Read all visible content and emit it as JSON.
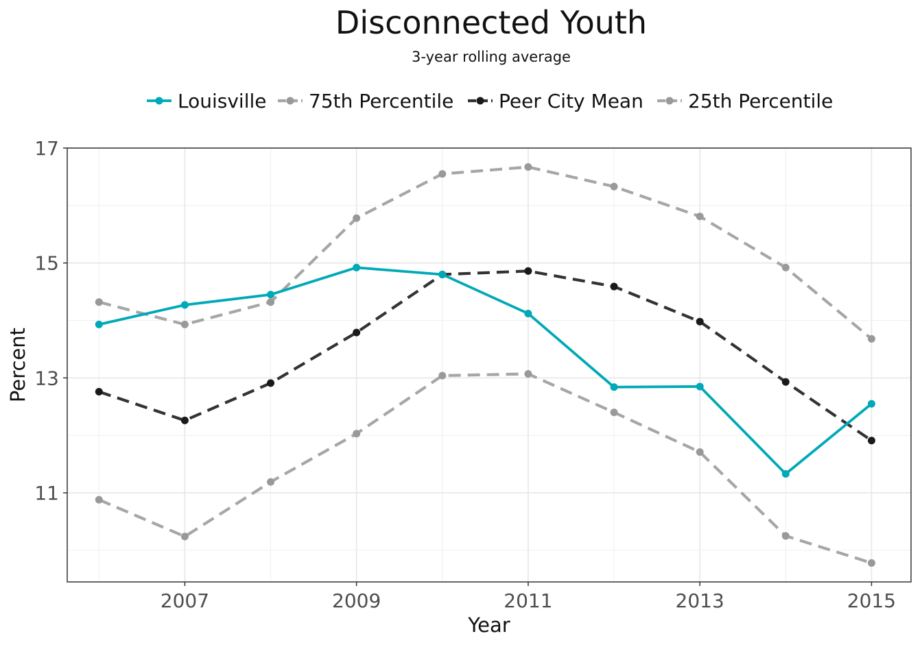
{
  "chart_data": {
    "type": "line",
    "title": "Disconnected Youth",
    "subtitle": "3-year rolling average",
    "xlabel": "Year",
    "ylabel": "Percent",
    "x": [
      2006,
      2007,
      2008,
      2009,
      2010,
      2011,
      2012,
      2013,
      2014,
      2015
    ],
    "x_ticks": [
      2007,
      2009,
      2011,
      2013,
      2015
    ],
    "x_range": [
      2005.63,
      2015.46
    ],
    "y_ticks": [
      11,
      13,
      15,
      17
    ],
    "ylim": [
      9.45,
      17.0
    ],
    "grid": true,
    "legend_position": "top",
    "series": [
      {
        "name": "Louisville",
        "style": "solid",
        "color": "#00a9b7",
        "values": [
          13.93,
          14.27,
          14.45,
          14.92,
          14.8,
          14.12,
          12.84,
          12.85,
          11.33,
          12.55
        ]
      },
      {
        "name": "75th Percentile",
        "style": "dashed",
        "color": "#a6a6a6",
        "values": [
          14.32,
          13.93,
          14.32,
          15.78,
          16.55,
          16.67,
          16.33,
          15.81,
          14.92,
          13.68
        ]
      },
      {
        "name": "Peer City Mean",
        "style": "dashed",
        "color": "#333333",
        "values": [
          12.76,
          12.26,
          12.91,
          13.79,
          14.8,
          14.86,
          14.59,
          13.98,
          12.93,
          11.91
        ]
      },
      {
        "name": "25th Percentile",
        "style": "dashed",
        "color": "#a6a6a6",
        "values": [
          10.88,
          10.24,
          11.19,
          12.03,
          13.04,
          13.07,
          12.4,
          11.71,
          10.25,
          9.78
        ]
      }
    ]
  }
}
